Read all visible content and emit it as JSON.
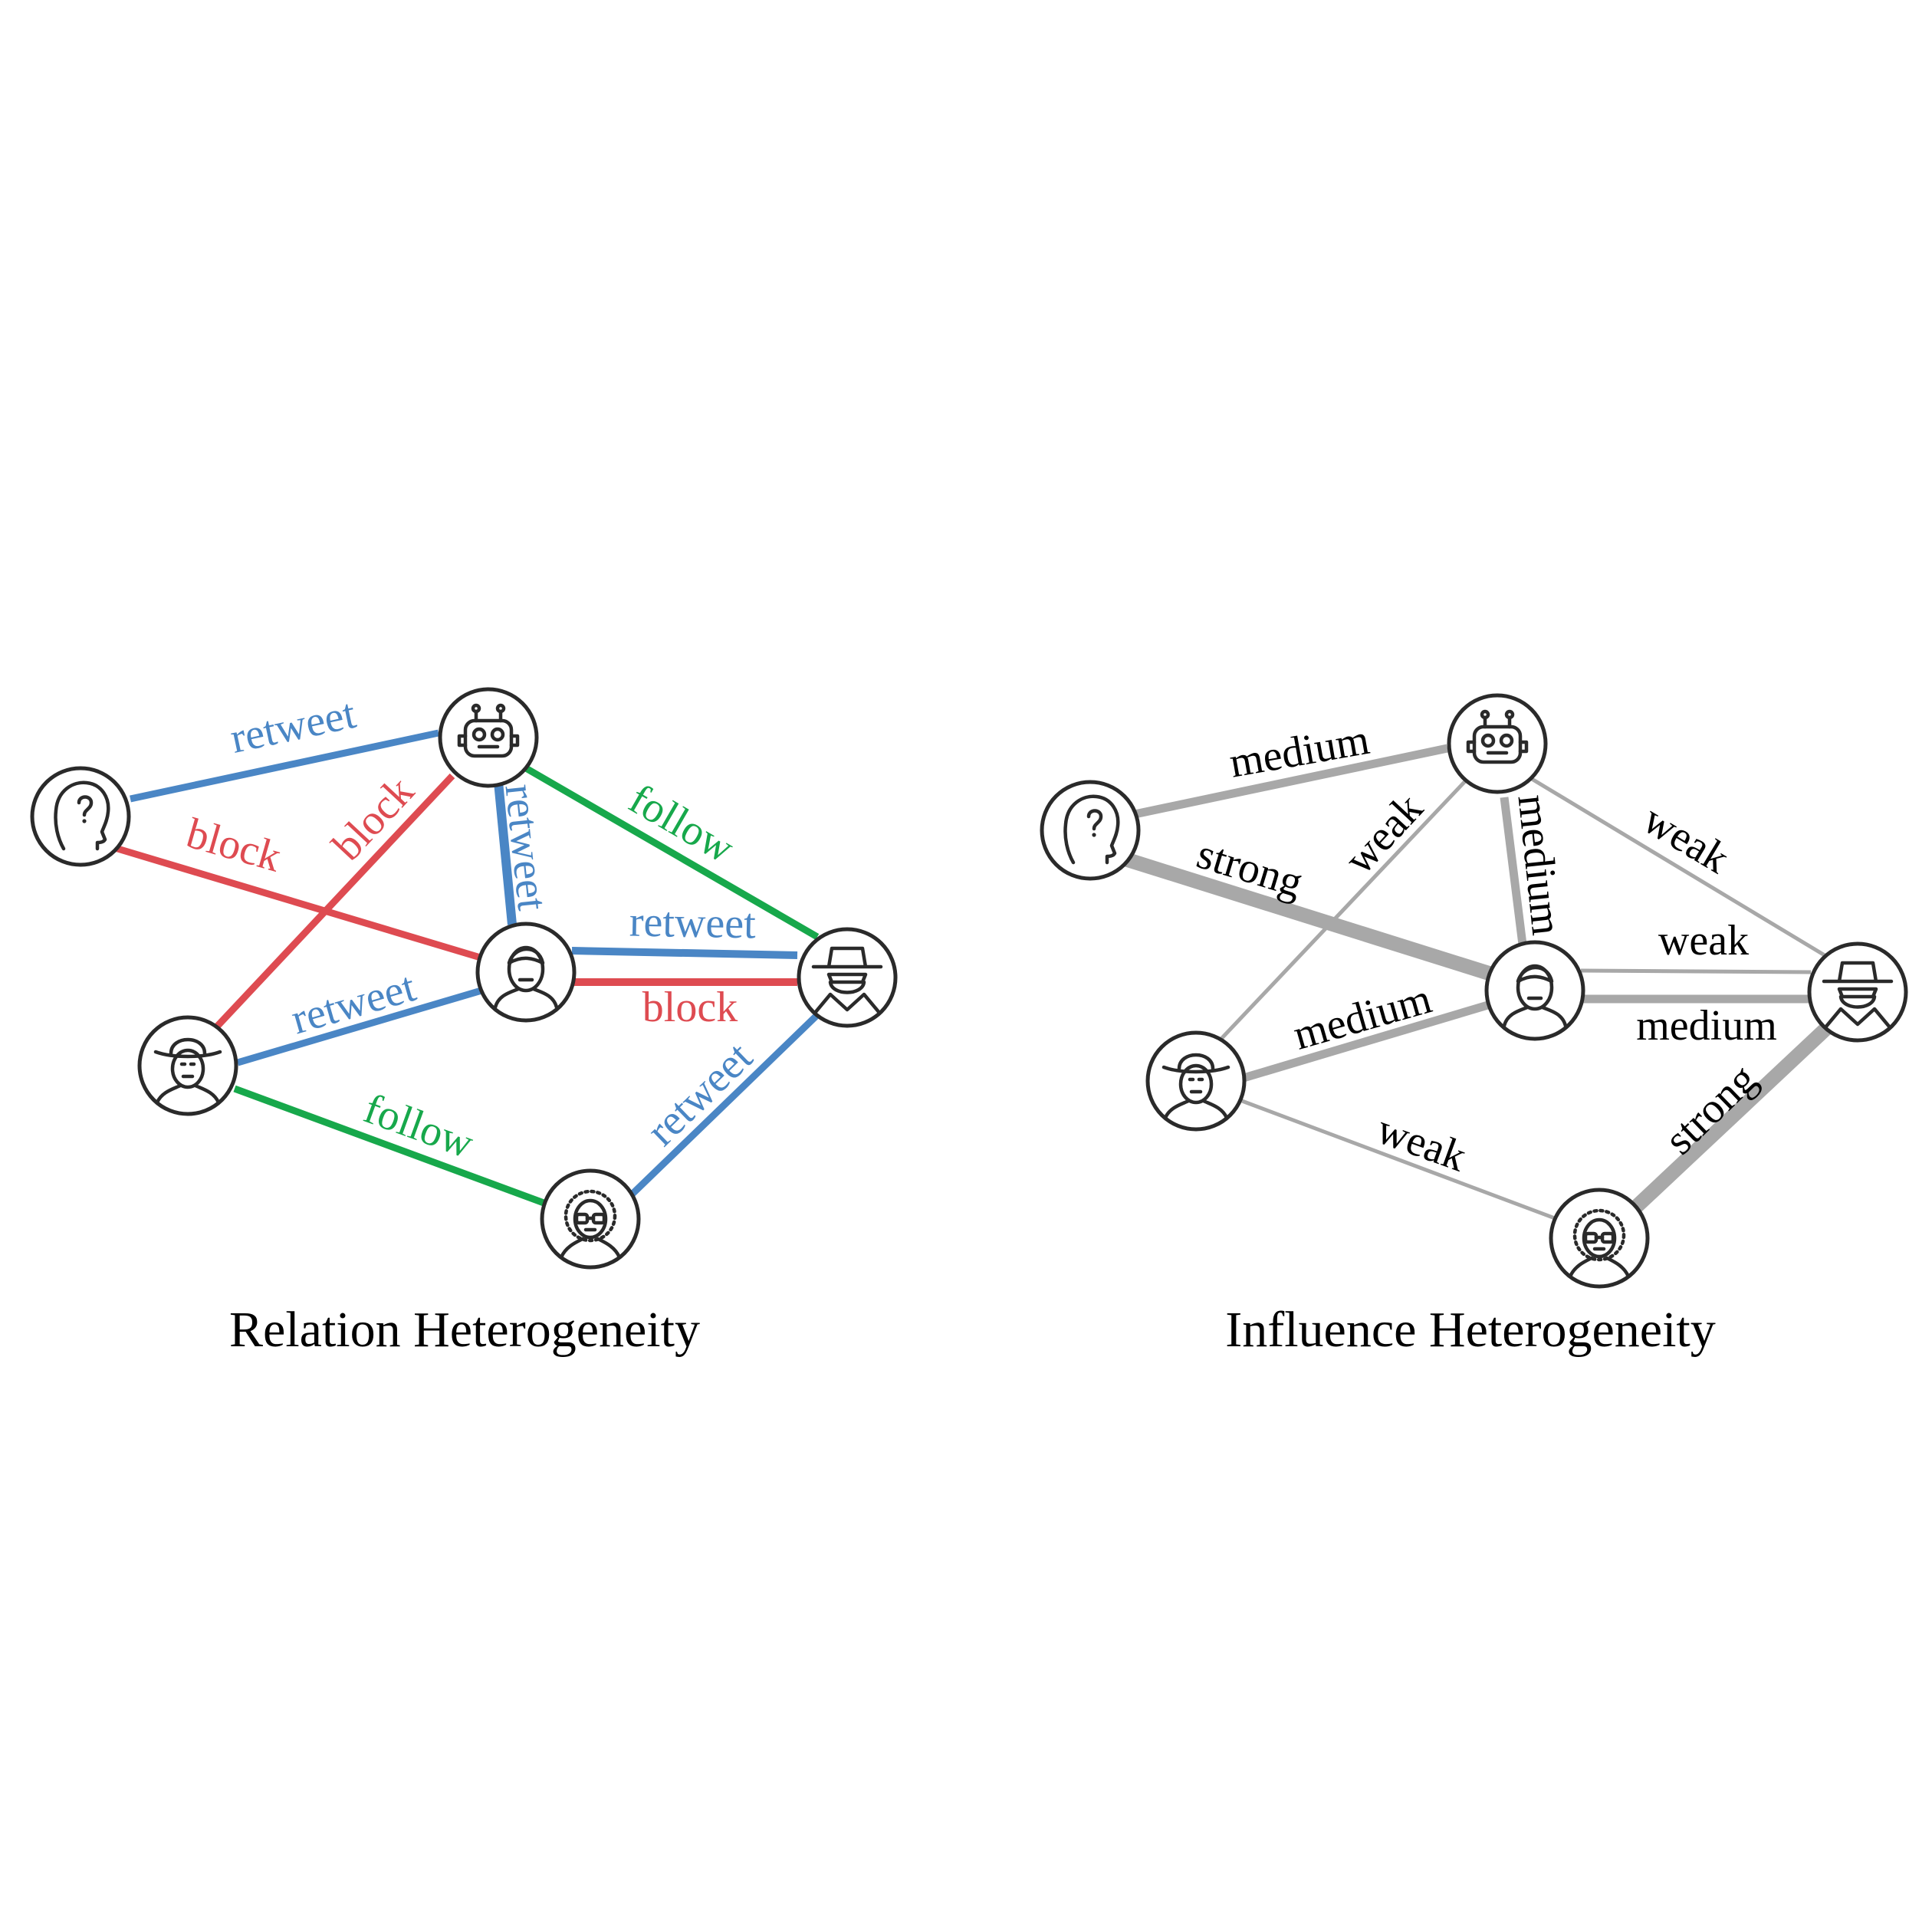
{
  "colors": {
    "retweet": "#4a86c5",
    "block": "#de4b51",
    "follow": "#17a84b",
    "influence": "#a8a8a8",
    "node_stroke": "#2a2a2a"
  },
  "icons": {
    "unknown": "unknown-user-icon",
    "robot": "robot-icon",
    "man": "man-icon",
    "spy": "spy-icon",
    "cowboy": "cowboy-icon",
    "nerd": "nerd-glasses-icon"
  },
  "relation_panel": {
    "caption": "Relation Heterogeneity",
    "edges": [
      {
        "id": "unknown-robot",
        "from": "unknown",
        "to": "robot",
        "type": "retweet",
        "label": "retweet"
      },
      {
        "id": "unknown-man",
        "from": "unknown",
        "to": "man",
        "type": "block",
        "label": "block"
      },
      {
        "id": "cowboy-robot",
        "from": "cowboy",
        "to": "robot",
        "type": "block",
        "label": "block"
      },
      {
        "id": "robot-man",
        "from": "robot",
        "to": "man",
        "type": "retweet",
        "label": "retweet"
      },
      {
        "id": "robot-spy",
        "from": "robot",
        "to": "spy",
        "type": "follow",
        "label": "follow"
      },
      {
        "id": "man-spy-retweet",
        "from": "man",
        "to": "spy",
        "type": "retweet",
        "label": "retweet"
      },
      {
        "id": "man-spy-block",
        "from": "man",
        "to": "spy",
        "type": "block",
        "label": "block"
      },
      {
        "id": "cowboy-man",
        "from": "cowboy",
        "to": "man",
        "type": "retweet",
        "label": "retweet"
      },
      {
        "id": "cowboy-nerd",
        "from": "cowboy",
        "to": "nerd",
        "type": "follow",
        "label": "follow"
      },
      {
        "id": "nerd-spy",
        "from": "nerd",
        "to": "spy",
        "type": "retweet",
        "label": "retweet"
      }
    ]
  },
  "influence_panel": {
    "caption": "Influence Heterogeneity",
    "edges": [
      {
        "id": "unknown-robot",
        "from": "unknown",
        "to": "robot",
        "strength": "medium",
        "label": "medium"
      },
      {
        "id": "unknown-man",
        "from": "unknown",
        "to": "man",
        "strength": "strong",
        "label": "strong"
      },
      {
        "id": "cowboy-robot",
        "from": "cowboy",
        "to": "robot",
        "strength": "weak",
        "label": "weak"
      },
      {
        "id": "robot-man",
        "from": "robot",
        "to": "man",
        "strength": "medium",
        "label": "medium"
      },
      {
        "id": "robot-spy",
        "from": "robot",
        "to": "spy",
        "strength": "weak",
        "label": "weak"
      },
      {
        "id": "man-spy-weak",
        "from": "man",
        "to": "spy",
        "strength": "weak",
        "label": "weak"
      },
      {
        "id": "man-spy-medium",
        "from": "man",
        "to": "spy",
        "strength": "medium",
        "label": "medium"
      },
      {
        "id": "cowboy-man",
        "from": "cowboy",
        "to": "man",
        "strength": "medium",
        "label": "medium"
      },
      {
        "id": "cowboy-nerd",
        "from": "cowboy",
        "to": "nerd",
        "strength": "weak",
        "label": "weak"
      },
      {
        "id": "nerd-spy",
        "from": "nerd",
        "to": "spy",
        "strength": "strong",
        "label": "strong"
      }
    ]
  }
}
